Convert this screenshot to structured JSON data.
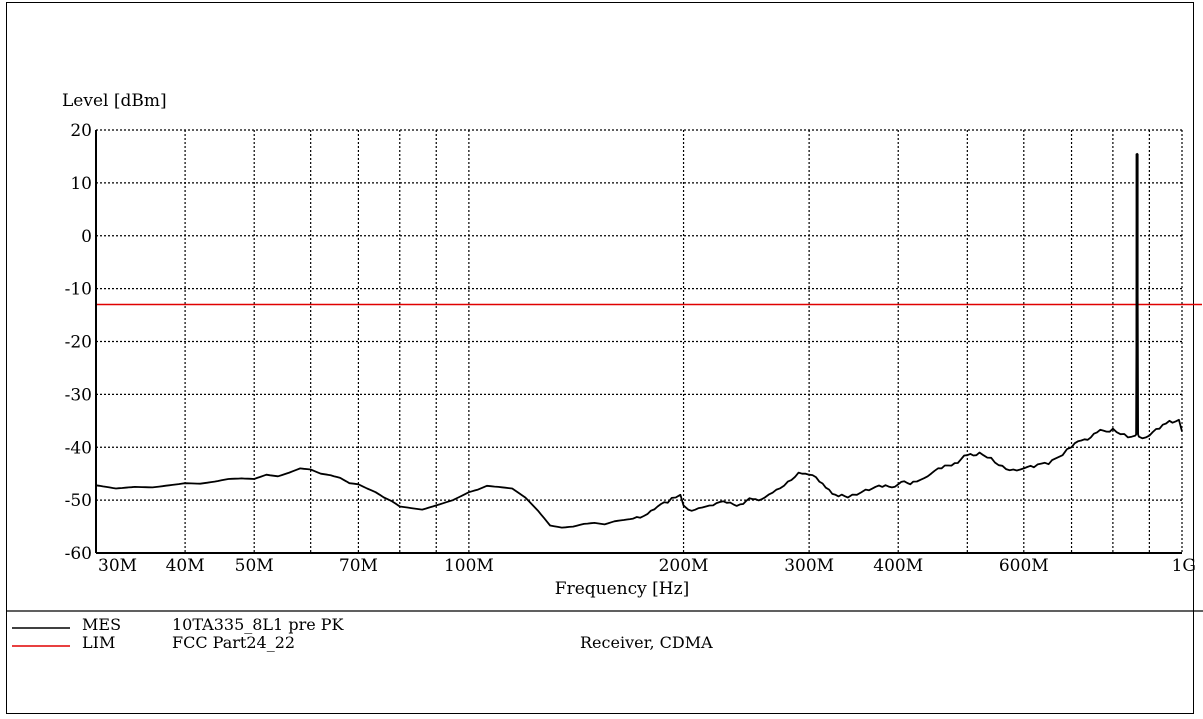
{
  "chart_data": {
    "type": "line",
    "ylabel": "Level [dBm]",
    "xlabel": "Frequency [Hz]",
    "x_scale": "log",
    "xlim": [
      30000000,
      1000000000
    ],
    "ylim": [
      -60,
      20
    ],
    "grid": true,
    "y_ticks": [
      {
        "value": 20,
        "label": "20"
      },
      {
        "value": 10,
        "label": "10"
      },
      {
        "value": 0,
        "label": "0"
      },
      {
        "value": -10,
        "label": "-10"
      },
      {
        "value": -20,
        "label": "-20"
      },
      {
        "value": -30,
        "label": "-30"
      },
      {
        "value": -40,
        "label": "-40"
      },
      {
        "value": -50,
        "label": "-50"
      },
      {
        "value": -60,
        "label": "-60"
      }
    ],
    "x_ticks": [
      {
        "value": 30000000,
        "label": "30M"
      },
      {
        "value": 40000000,
        "label": "40M"
      },
      {
        "value": 50000000,
        "label": "50M"
      },
      {
        "value": 70000000,
        "label": "70M"
      },
      {
        "value": 100000000,
        "label": "100M"
      },
      {
        "value": 200000000,
        "label": "200M"
      },
      {
        "value": 300000000,
        "label": "300M"
      },
      {
        "value": 400000000,
        "label": "400M"
      },
      {
        "value": 600000000,
        "label": "600M"
      },
      {
        "value": 1000000000,
        "label": "1G"
      }
    ],
    "x_grid": [
      40000000,
      50000000,
      60000000,
      70000000,
      80000000,
      90000000,
      100000000,
      200000000,
      300000000,
      400000000,
      500000000,
      600000000,
      700000000,
      800000000,
      900000000,
      1000000000
    ],
    "series": [
      {
        "name": "MES 10TA335_8L1 pre PK",
        "color": "#000000",
        "x": [
          30000000,
          31000000,
          32000000,
          34000000,
          36000000,
          38000000,
          40000000,
          42000000,
          44000000,
          46000000,
          48000000,
          50000000,
          52000000,
          54000000,
          56000000,
          58000000,
          60000000,
          62000000,
          64000000,
          66000000,
          68000000,
          70000000,
          72000000,
          74000000,
          76000000,
          78000000,
          80000000,
          83000000,
          86000000,
          90000000,
          95000000,
          100000000,
          103000000,
          106000000,
          110000000,
          115000000,
          120000000,
          125000000,
          130000000,
          135000000,
          140000000,
          145000000,
          150000000,
          155000000,
          160000000,
          170000000,
          180000000,
          190000000,
          195000000,
          198000000,
          200000000,
          203000000,
          210000000,
          220000000,
          230000000,
          240000000,
          250000000,
          260000000,
          270000000,
          280000000,
          290000000,
          300000000,
          310000000,
          320000000,
          330000000,
          340000000,
          350000000,
          360000000,
          380000000,
          400000000,
          420000000,
          440000000,
          460000000,
          480000000,
          500000000,
          520000000,
          540000000,
          560000000,
          580000000,
          600000000,
          620000000,
          650000000,
          680000000,
          700000000,
          730000000,
          760000000,
          800000000,
          830000000,
          850000000,
          860000000,
          865000000,
          870000000,
          880000000,
          900000000,
          930000000,
          960000000,
          990000000,
          1000000000
        ],
        "y": [
          -47.2,
          -47.5,
          -47.8,
          -47.5,
          -47.6,
          -47.2,
          -46.8,
          -46.9,
          -46.5,
          -46.0,
          -45.9,
          -46.0,
          -45.2,
          -45.5,
          -44.8,
          -44.0,
          -44.2,
          -45.0,
          -45.3,
          -45.8,
          -46.8,
          -47.0,
          -47.8,
          -48.5,
          -49.5,
          -50.2,
          -51.2,
          -51.5,
          -51.8,
          -51.0,
          -50.0,
          -48.5,
          -48.0,
          -47.3,
          -47.5,
          -47.8,
          -49.5,
          -52.0,
          -54.8,
          -55.2,
          -55.0,
          -54.5,
          -54.3,
          -54.6,
          -54.0,
          -53.5,
          -52.0,
          -50.5,
          -49.5,
          -49.0,
          -51.0,
          -51.8,
          -51.5,
          -51.0,
          -50.5,
          -50.8,
          -49.8,
          -49.5,
          -48.0,
          -46.5,
          -44.8,
          -45.2,
          -46.5,
          -48.0,
          -49.3,
          -49.5,
          -49.0,
          -48.0,
          -47.5,
          -47.0,
          -46.5,
          -45.5,
          -44.0,
          -43.0,
          -41.5,
          -41.0,
          -42.0,
          -43.5,
          -44.2,
          -44.0,
          -43.8,
          -43.2,
          -41.5,
          -40.0,
          -38.5,
          -37.2,
          -36.5,
          -37.5,
          -38.0,
          -37.8,
          -37.6,
          -38.0,
          -38.3,
          -37.8,
          -36.5,
          -35.0,
          -34.8,
          -37.0
        ]
      },
      {
        "name": "LIM FCC Part24_22",
        "color": "#e00000",
        "x": [
          30000000,
          1000000000
        ],
        "y": [
          -13,
          -13
        ]
      }
    ],
    "spike": {
      "x": 865000000,
      "y": 15.5,
      "base": -37.6
    }
  },
  "legend": [
    {
      "tag": "MES",
      "text": "10TA335_8L1 pre PK",
      "extra": "",
      "color": "#000000"
    },
    {
      "tag": "LIM",
      "text": "FCC Part24_22",
      "extra": "Receiver, CDMA",
      "color": "#e00000"
    }
  ]
}
